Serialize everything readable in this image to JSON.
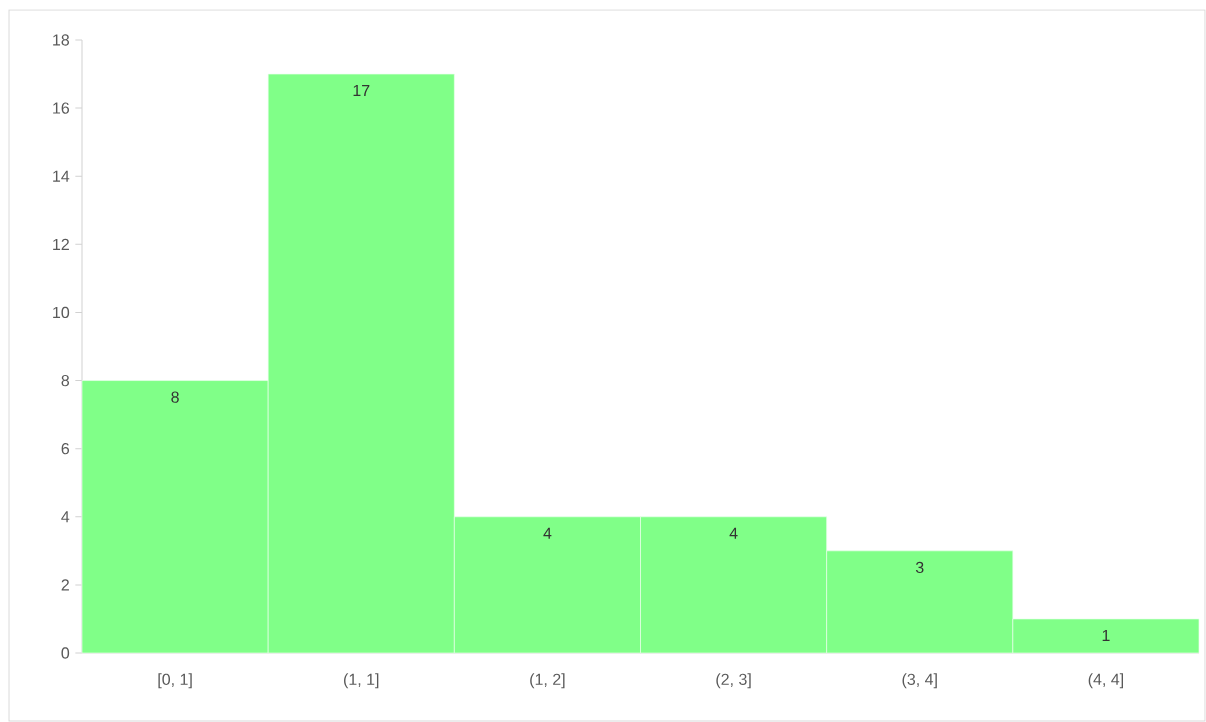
{
  "chart_data": {
    "type": "bar",
    "categories": [
      "[0, 1]",
      "(1, 1]",
      "(1, 2]",
      "(2, 3]",
      "(3, 4]",
      "(4, 4]"
    ],
    "values": [
      8,
      17,
      4,
      4,
      3,
      1
    ],
    "color": "#80ff88",
    "ylim": [
      0,
      18
    ],
    "yticks": [
      0,
      2,
      4,
      6,
      8,
      10,
      12,
      14,
      16,
      18
    ],
    "data_labels": true
  }
}
